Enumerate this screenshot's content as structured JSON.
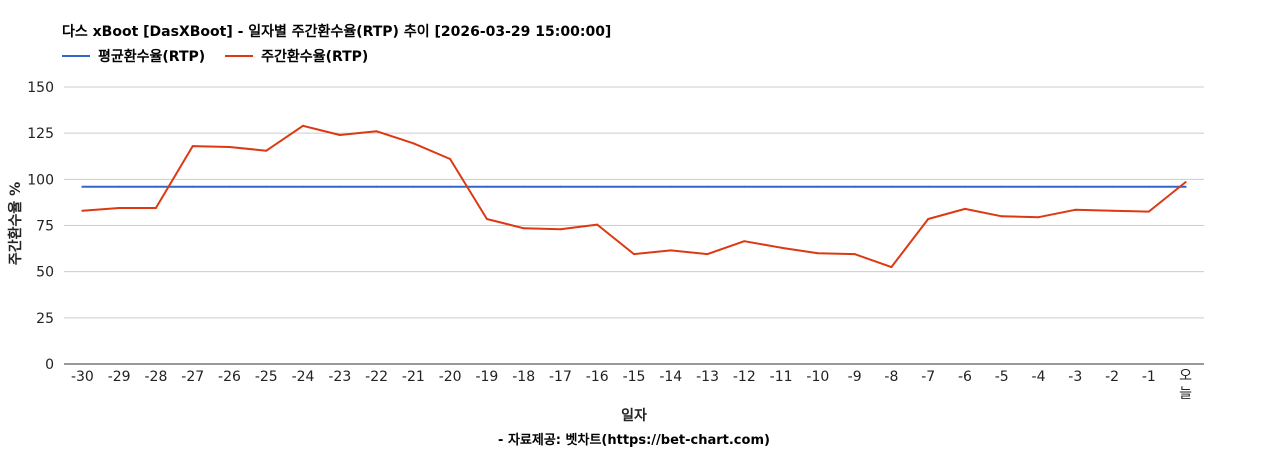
{
  "colors": {
    "avg": "#3366cc",
    "weekly": "#dc3912",
    "grid": "#cccccc",
    "axis": "#333333"
  },
  "footer": "- 자료제공: 벳차트(https://bet-chart.com)",
  "chart_data": {
    "type": "line",
    "title": "다스 xBoot [DasXBoot] - 일자별 주간환수율(RTP) 추이 [2026-03-29 15:00:00]",
    "xlabel": "일자",
    "ylabel": "주간환수율 %",
    "ylim": [
      0,
      150
    ],
    "yticks": [
      "0",
      "25",
      "50",
      "75",
      "100",
      "125",
      "150"
    ],
    "grid": true,
    "legend": "top-left",
    "categories": [
      "-30",
      "-29",
      "-28",
      "-27",
      "-26",
      "-25",
      "-24",
      "-23",
      "-22",
      "-21",
      "-20",
      "-19",
      "-18",
      "-17",
      "-16",
      "-15",
      "-14",
      "-13",
      "-12",
      "-11",
      "-10",
      "-9",
      "-8",
      "-7",
      "-6",
      "-5",
      "-4",
      "-3",
      "-2",
      "-1",
      "오늘"
    ],
    "series": [
      {
        "name": "평균환수율(RTP)",
        "color": "#3366cc",
        "values": [
          96,
          96,
          96,
          96,
          96,
          96,
          96,
          96,
          96,
          96,
          96,
          96,
          96,
          96,
          96,
          96,
          96,
          96,
          96,
          96,
          96,
          96,
          96,
          96,
          96,
          96,
          96,
          96,
          96,
          96,
          96
        ]
      },
      {
        "name": "주간환수율(RTP)",
        "color": "#dc3912",
        "values": [
          83,
          84.5,
          84.5,
          118,
          117.5,
          115.5,
          129,
          124,
          126,
          119.5,
          111,
          78.5,
          73.5,
          73,
          75.5,
          59.5,
          61.5,
          59.5,
          66.5,
          63,
          60,
          59.5,
          52.5,
          78.5,
          84,
          80,
          79.5,
          83.5,
          83,
          82.5,
          98.5
        ]
      }
    ]
  }
}
